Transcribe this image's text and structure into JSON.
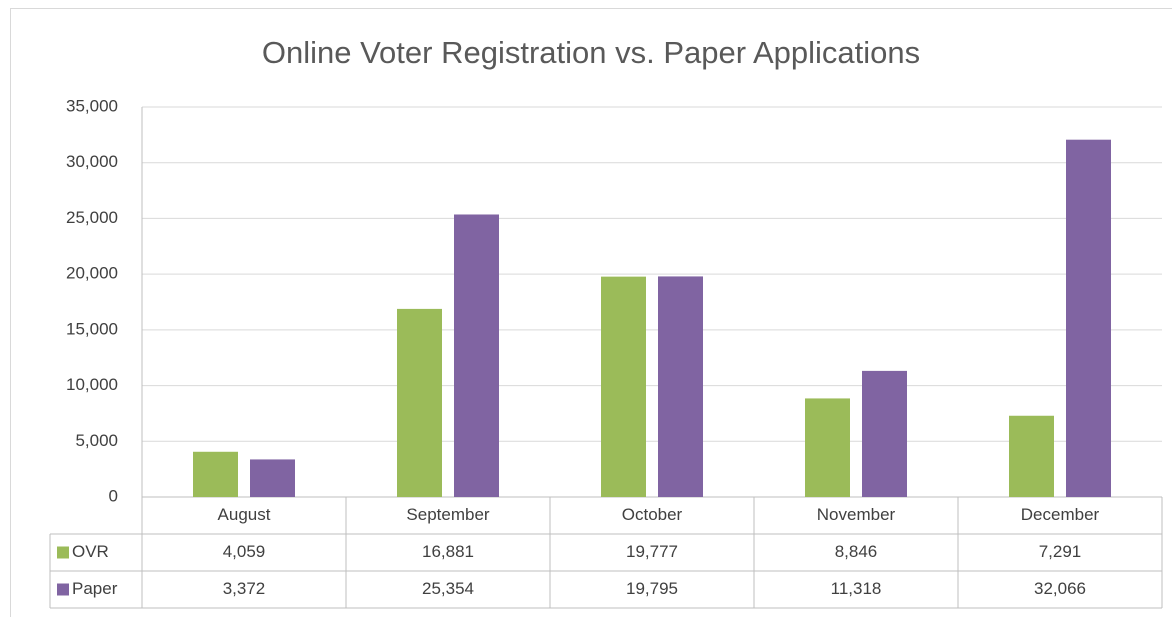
{
  "chart_data": {
    "type": "bar",
    "title": "Online Voter Registration vs. Paper Applications",
    "categories": [
      "August",
      "September",
      "October",
      "November",
      "December"
    ],
    "series": [
      {
        "name": "OVR",
        "color": "#9bbb59",
        "values": [
          4059,
          16881,
          19777,
          8846,
          7291
        ],
        "value_labels": [
          "4,059",
          "16,881",
          "19,777",
          "8,846",
          "7,291"
        ]
      },
      {
        "name": "Paper",
        "color": "#8064a2",
        "values": [
          3372,
          25354,
          19795,
          11318,
          32066
        ],
        "value_labels": [
          "3,372",
          "25,354",
          "19,795",
          "11,318",
          "32,066"
        ]
      }
    ],
    "ylim": [
      0,
      35000
    ],
    "yticks": [
      0,
      {
        "value": 5000,
        "label": "5,000"
      },
      {
        "value": 10000,
        "label": "10,000"
      },
      {
        "value": 15000,
        "label": "15,000"
      },
      {
        "value": 20000,
        "label": "20,000"
      },
      {
        "value": 25000,
        "label": "25,000"
      },
      {
        "value": 30000,
        "label": "30,000"
      },
      {
        "value": 35000,
        "label": "35,000"
      }
    ],
    "grid": true,
    "legend": "table"
  }
}
